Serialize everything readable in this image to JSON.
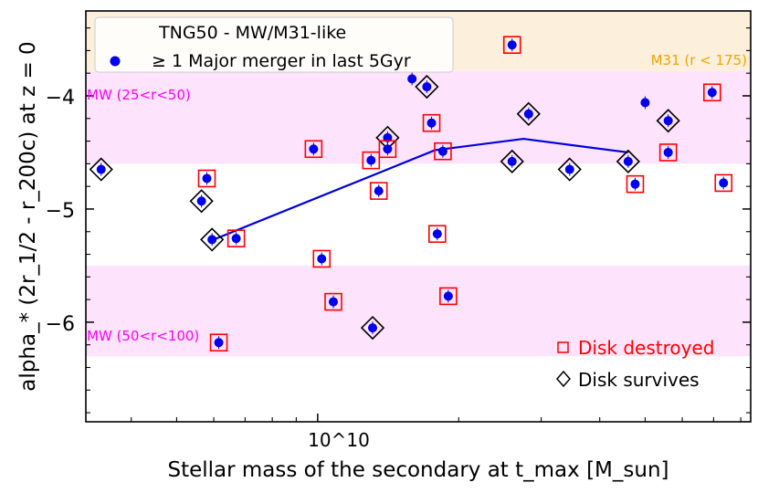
{
  "chart_data": {
    "type": "scatter",
    "title": "",
    "xlabel": "Stellar mass of the secondary at t_max [M_sun]",
    "ylabel": "alpha_* (2r_1/2 - r_200c) at z = 0",
    "xscale": "log",
    "xlim": [
      3200000000.0,
      84000000000.0
    ],
    "ylim": [
      -6.88,
      -3.25
    ],
    "x_tick_label": "10^10",
    "y_ticks": [
      -6,
      -5,
      -4
    ],
    "y_tick_labels": [
      "−6",
      "−5",
      "−4"
    ],
    "bands": [
      {
        "name": "M31 (r < 175)",
        "ymin": -3.78,
        "ymax": -3.25,
        "color": "#fcefdc",
        "label_color": "#f5a300",
        "label_position": "top-right"
      },
      {
        "name": "MW (25<r<50)",
        "ymin": -4.6,
        "ymax": -3.78,
        "color": "#fde3fc",
        "label_color": "#ff00ff",
        "label_position": "top-left"
      },
      {
        "name": "MW (50<r<100)",
        "ymin": -6.3,
        "ymax": -5.5,
        "color": "#fde3fc",
        "label_color": "#ff00ff",
        "label_position": "bottom-left"
      }
    ],
    "legend": {
      "position": "top-left",
      "title": "TNG50 - MW/M31-like",
      "entry": "≥ 1 Major merger in last 5Gyr"
    },
    "marker_legend": {
      "position": "bottom-right",
      "entries": [
        {
          "marker": "square",
          "label": "Disk destroyed",
          "color": "#ff0000"
        },
        {
          "marker": "diamond",
          "label": "Disk survives",
          "color": "#000000"
        }
      ]
    },
    "median_line": {
      "color": "#0000dd",
      "x": [
        6000000000.0,
        17800000000.0,
        27500000000.0,
        46000000000.0
      ],
      "y": [
        -5.27,
        -4.48,
        -4.38,
        -4.5
      ]
    },
    "point_color": "#0000ee",
    "series": [
      {
        "x": 3450000000.0,
        "y": -4.65,
        "marker": "diamond"
      },
      {
        "x": 5800000000.0,
        "y": -4.73,
        "marker": "square"
      },
      {
        "x": 5650000000.0,
        "y": -4.93,
        "marker": "diamond"
      },
      {
        "x": 5950000000.0,
        "y": -5.27,
        "marker": "diamond"
      },
      {
        "x": 6700000000.0,
        "y": -5.26,
        "marker": "square"
      },
      {
        "x": 6150000000.0,
        "y": -6.18,
        "marker": "square"
      },
      {
        "x": 9800000000.0,
        "y": -4.47,
        "marker": "square"
      },
      {
        "x": 10200000000.0,
        "y": -5.44,
        "marker": "square"
      },
      {
        "x": 10800000000.0,
        "y": -5.82,
        "marker": "square"
      },
      {
        "x": 13000000000.0,
        "y": -4.57,
        "marker": "square"
      },
      {
        "x": 13500000000.0,
        "y": -4.84,
        "marker": "square"
      },
      {
        "x": 13100000000.0,
        "y": -6.05,
        "marker": "diamond"
      },
      {
        "x": 14100000000.0,
        "y": -4.37,
        "marker": "diamond"
      },
      {
        "x": 14100000000.0,
        "y": -4.47,
        "marker": "square"
      },
      {
        "x": 15900000000.0,
        "y": -3.85,
        "marker": "none"
      },
      {
        "x": 17100000000.0,
        "y": -3.92,
        "marker": "diamond"
      },
      {
        "x": 17500000000.0,
        "y": -4.24,
        "marker": "square"
      },
      {
        "x": 18500000000.0,
        "y": -4.49,
        "marker": "square"
      },
      {
        "x": 18000000000.0,
        "y": -5.22,
        "marker": "square"
      },
      {
        "x": 19000000000.0,
        "y": -5.77,
        "marker": "square"
      },
      {
        "x": 26000000000.0,
        "y": -3.55,
        "marker": "square"
      },
      {
        "x": 26000000000.0,
        "y": -4.58,
        "marker": "diamond"
      },
      {
        "x": 28200000000.0,
        "y": -4.16,
        "marker": "diamond"
      },
      {
        "x": 34500000000.0,
        "y": -4.65,
        "marker": "diamond"
      },
      {
        "x": 46000000000.0,
        "y": -4.58,
        "marker": "diamond"
      },
      {
        "x": 47600000000.0,
        "y": -4.78,
        "marker": "square"
      },
      {
        "x": 50000000000.0,
        "y": -4.06,
        "marker": "none"
      },
      {
        "x": 56000000000.0,
        "y": -4.22,
        "marker": "diamond"
      },
      {
        "x": 56000000000.0,
        "y": -4.5,
        "marker": "square"
      },
      {
        "x": 69500000000.0,
        "y": -3.97,
        "marker": "square"
      },
      {
        "x": 73500000000.0,
        "y": -4.77,
        "marker": "square"
      }
    ]
  }
}
